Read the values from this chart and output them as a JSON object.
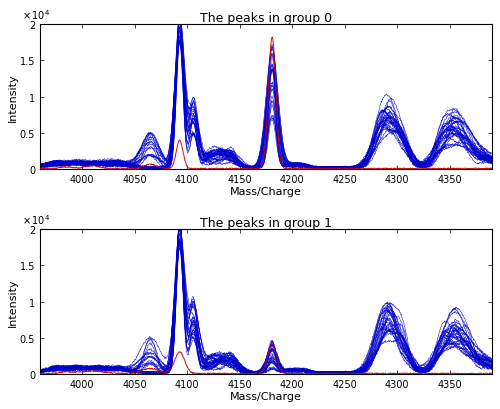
{
  "title_group0": "The peaks in group 0",
  "title_group1": "The peaks in group 1",
  "xlabel": "Mass/Charge",
  "ylabel": "Intensity",
  "xlim": [
    3960,
    4390
  ],
  "ylim": [
    0,
    20000
  ],
  "yticks": [
    0,
    5000,
    10000,
    15000,
    20000
  ],
  "ytick_labels": [
    "0",
    "0.5",
    "1",
    "1.5",
    "2"
  ],
  "xticks": [
    4000,
    4050,
    4100,
    4150,
    4200,
    4250,
    4300,
    4350
  ],
  "blue_color": "#0000CC",
  "red_color": "#CC0000",
  "background_color": "#ffffff",
  "n_spectra_group0": 30,
  "n_spectra_group1": 30,
  "figsize": [
    5.0,
    4.1
  ],
  "dpi": 100
}
